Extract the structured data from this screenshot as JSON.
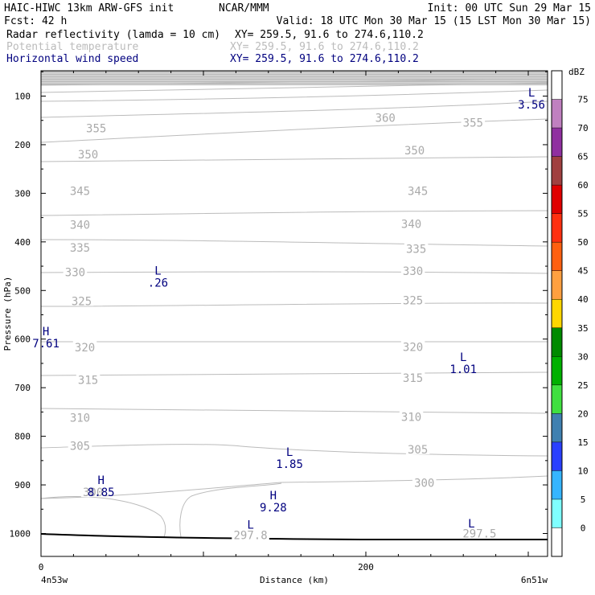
{
  "header": {
    "line1_left": "HAIC-HIWC 13km ARW-GFS init",
    "line1_mid": "NCAR/MMM",
    "line1_right": "Init: 00 UTC Sun 29 Mar 15",
    "line2_left": "Fcst:   42 h",
    "line2_right": "Valid: 18 UTC Mon 30 Mar 15 (15 LST Mon 30 Mar 15)",
    "fields": [
      {
        "name": "Radar reflectivity (lamda = 10 cm)",
        "xy": "XY= 259.5, 91.6 to 274.6,110.2",
        "color": "#000000"
      },
      {
        "name": "Potential temperature",
        "xy": "XY= 259.5, 91.6 to 274.6,110.2",
        "color": "#bbbbbb"
      },
      {
        "name": "Horizontal wind speed",
        "xy": "XY= 259.5, 91.6 to 274.6,110.2",
        "color": "#00007f"
      }
    ]
  },
  "chart_data": {
    "type": "cross-section",
    "xlabel": "Distance (km)",
    "ylabel": "Pressure (hPa)",
    "x_ticks": [
      0,
      200
    ],
    "x_range": [
      0,
      313
    ],
    "y_ticks": [
      100,
      200,
      300,
      400,
      500,
      600,
      700,
      800,
      900,
      1000
    ],
    "y_range": [
      50,
      1046
    ],
    "endpoint_labels": {
      "left": "4n53w",
      "right": "6n51w"
    },
    "theta_contours": [
      {
        "value": 297.5,
        "label": "297.5",
        "label_points": [
          [
            270,
            1000
          ]
        ]
      },
      {
        "value": 297.8,
        "label": "297.8",
        "label_points": [
          [
            129,
            1003
          ]
        ]
      },
      {
        "value": 300,
        "label": "300",
        "label_points": [
          [
            32,
            915
          ],
          [
            236,
            896
          ]
        ]
      },
      {
        "value": 305,
        "label": "305",
        "label_points": [
          [
            24,
            820
          ],
          [
            232,
            827
          ]
        ]
      },
      {
        "value": 310,
        "label": "310",
        "label_points": [
          [
            24,
            762
          ],
          [
            228,
            760
          ]
        ]
      },
      {
        "value": 315,
        "label": "315",
        "label_points": [
          [
            29,
            684
          ],
          [
            229,
            680
          ]
        ]
      },
      {
        "value": 320,
        "label": "320",
        "label_points": [
          [
            27,
            617
          ],
          [
            229,
            616
          ]
        ]
      },
      {
        "value": 325,
        "label": "325",
        "label_points": [
          [
            25,
            522
          ],
          [
            229,
            520
          ]
        ]
      },
      {
        "value": 330,
        "label": "330",
        "label_points": [
          [
            21,
            462
          ],
          [
            229,
            460
          ]
        ]
      },
      {
        "value": 335,
        "label": "335",
        "label_points": [
          [
            24,
            412
          ],
          [
            231,
            414
          ]
        ]
      },
      {
        "value": 340,
        "label": "340",
        "label_points": [
          [
            24,
            365
          ],
          [
            228,
            363
          ]
        ]
      },
      {
        "value": 345,
        "label": "345",
        "label_points": [
          [
            24,
            295
          ],
          [
            232,
            295
          ]
        ]
      },
      {
        "value": 350,
        "label": "350",
        "label_points": [
          [
            29,
            220
          ],
          [
            230,
            212
          ]
        ]
      },
      {
        "value": 355,
        "label": "355",
        "label_points": [
          [
            34,
            166
          ],
          [
            266,
            155
          ]
        ]
      },
      {
        "value": 360,
        "label": "360",
        "label_points": [
          [
            212,
            145
          ]
        ]
      }
    ],
    "wind_extrema": [
      {
        "type": "L",
        "value": "3.56",
        "x": 302,
        "p": 101
      },
      {
        "type": "L",
        "value": ".26",
        "x": 72,
        "p": 467
      },
      {
        "type": "H",
        "value": "7.61",
        "x": 3,
        "p": 592
      },
      {
        "type": "L",
        "value": "1.01",
        "x": 260,
        "p": 645
      },
      {
        "type": "L",
        "value": "1.85",
        "x": 153,
        "p": 840
      },
      {
        "type": "H",
        "value": "8.85",
        "x": 37,
        "p": 898
      },
      {
        "type": "H",
        "value": "9.28",
        "x": 143,
        "p": 930
      },
      {
        "type": "L",
        "value": "",
        "x": 129,
        "p": 990
      },
      {
        "type": "L",
        "value": "",
        "x": 265,
        "p": 988
      }
    ],
    "colorbar": {
      "unit": "dBZ",
      "levels": [
        0,
        5,
        10,
        15,
        20,
        25,
        30,
        35,
        40,
        45,
        50,
        55,
        60,
        65,
        70,
        75
      ],
      "colors": [
        "#ffffff",
        "#7fffff",
        "#36b5ff",
        "#2a40ff",
        "#4080b0",
        "#40e040",
        "#00b000",
        "#008a00",
        "#ffd700",
        "#ffa040",
        "#ff6010",
        "#ff3010",
        "#e00000",
        "#a04040",
        "#9030a0",
        "#c080c0",
        "#ffffff"
      ]
    }
  }
}
